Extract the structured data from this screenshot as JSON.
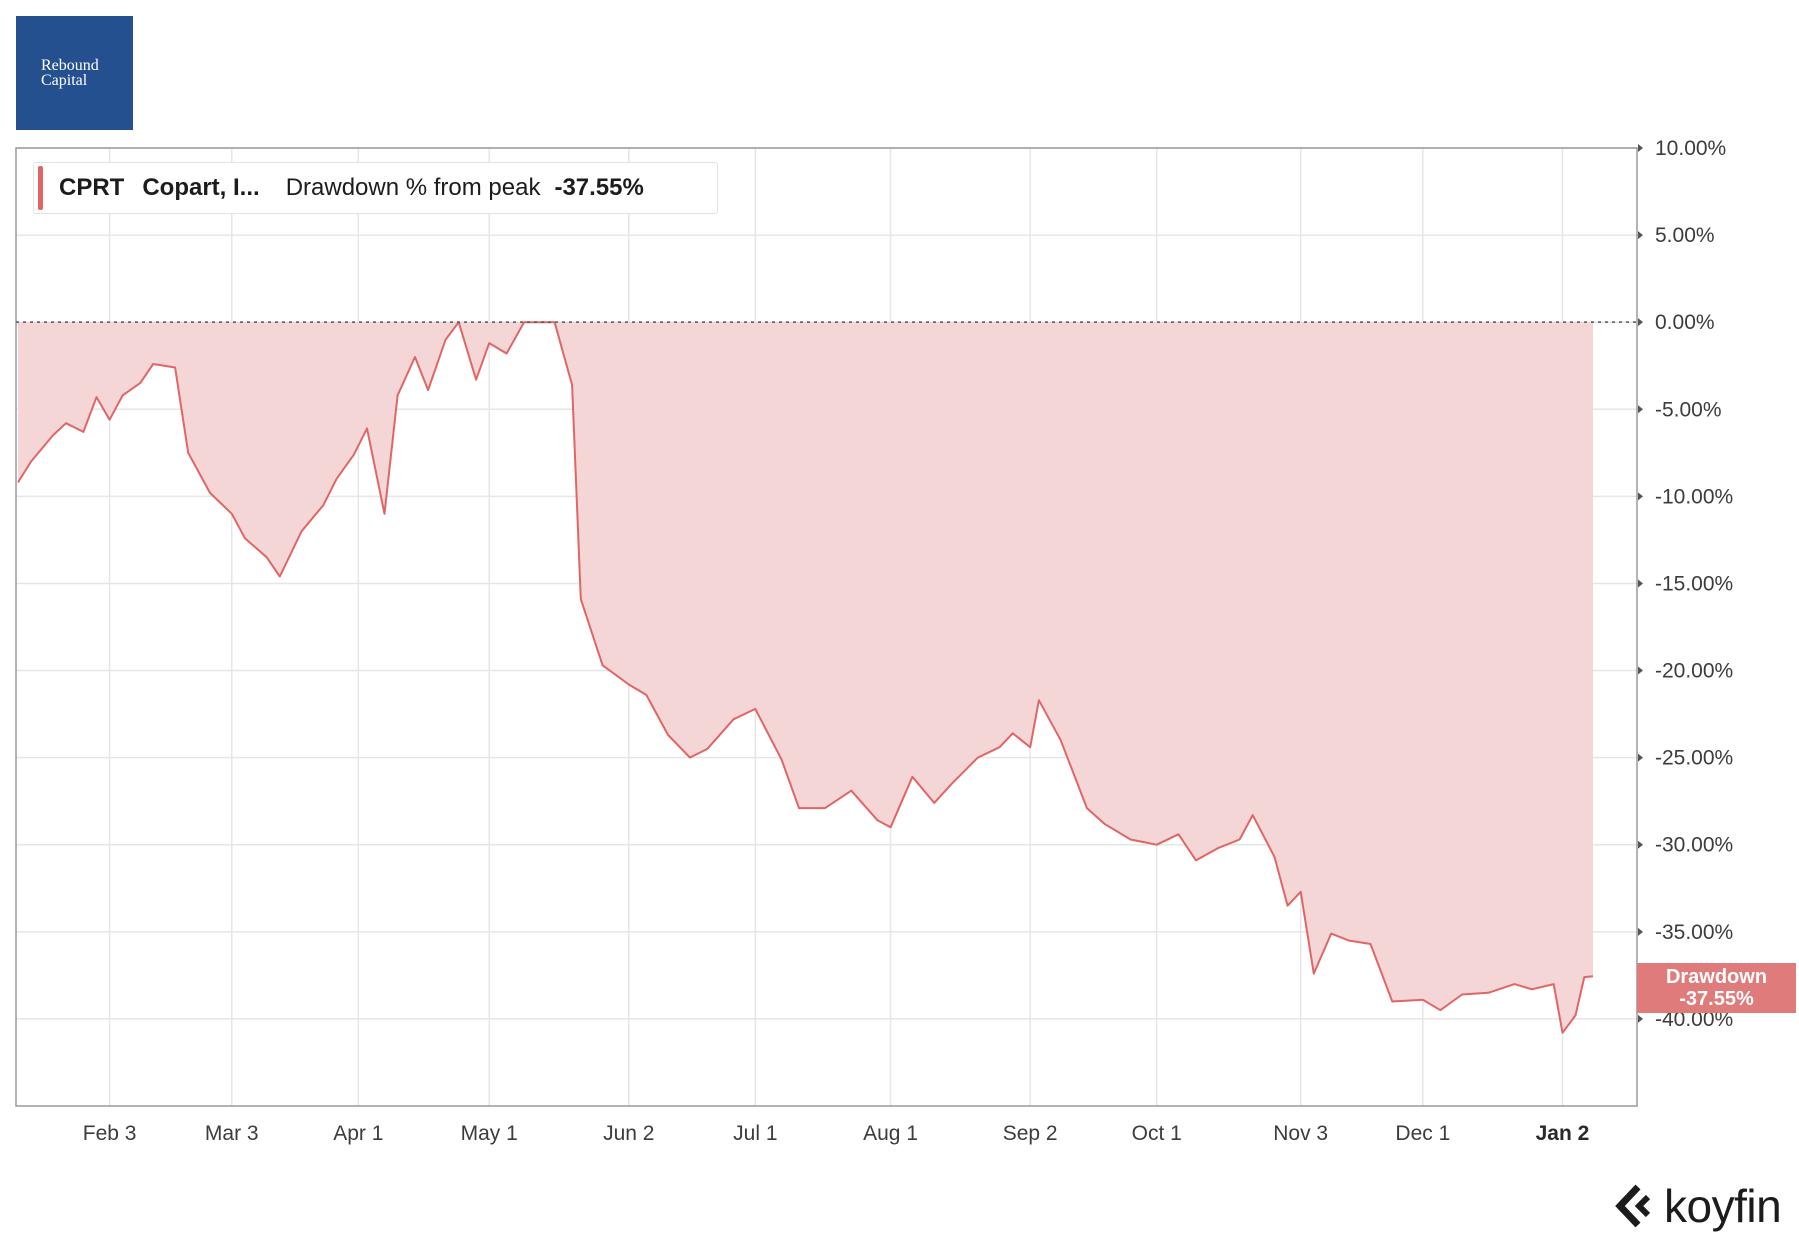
{
  "logo": {
    "text": "Rebound\nCapital"
  },
  "legend": {
    "ticker": "CPRT",
    "name": "Copart, I...",
    "metric": "Drawdown % from peak",
    "value": "-37.55%"
  },
  "value_tag": {
    "line1": "Drawdown",
    "line2": "-37.55%"
  },
  "brand": {
    "name": "koyfin",
    "icon": "koyfin-chevron-logo"
  },
  "colors": {
    "series": "#e06666",
    "fill": "#f5d6d6",
    "tag": "#e07b7b",
    "logo_bg": "#24508f"
  },
  "chart_data": {
    "type": "area",
    "title": "",
    "xlabel": "",
    "ylabel": "",
    "ylim": [
      -45,
      10
    ],
    "grid": true,
    "y_ticks": [
      {
        "v": 10,
        "label": "10.00%"
      },
      {
        "v": 5,
        "label": "5.00%"
      },
      {
        "v": 0,
        "label": "0.00%"
      },
      {
        "v": -5,
        "label": "-5.00%"
      },
      {
        "v": -10,
        "label": "-10.00%"
      },
      {
        "v": -15,
        "label": "-15.00%"
      },
      {
        "v": -20,
        "label": "-20.00%"
      },
      {
        "v": -25,
        "label": "-25.00%"
      },
      {
        "v": -30,
        "label": "-30.00%"
      },
      {
        "v": -35,
        "label": "-35.00%"
      },
      {
        "v": -40,
        "label": "-40.00%"
      }
    ],
    "x_range": [
      "2025-01-13",
      "2026-01-09"
    ],
    "x_ticks": [
      {
        "date": "2025-02-03",
        "label": "Feb 3"
      },
      {
        "date": "2025-03-03",
        "label": "Mar 3"
      },
      {
        "date": "2025-04-01",
        "label": "Apr 1"
      },
      {
        "date": "2025-05-01",
        "label": "May 1"
      },
      {
        "date": "2025-06-02",
        "label": "Jun 2"
      },
      {
        "date": "2025-07-01",
        "label": "Jul 1"
      },
      {
        "date": "2025-08-01",
        "label": "Aug 1"
      },
      {
        "date": "2025-09-02",
        "label": "Sep 2"
      },
      {
        "date": "2025-10-01",
        "label": "Oct 1"
      },
      {
        "date": "2025-11-03",
        "label": "Nov 3"
      },
      {
        "date": "2025-12-01",
        "label": "Dec 1"
      },
      {
        "date": "2026-01-02",
        "label": "Jan 2",
        "bold": true
      }
    ],
    "reference_line": 0,
    "series": [
      {
        "name": "Drawdown % from peak",
        "points": [
          [
            "2025-01-13",
            -9.2
          ],
          [
            "2025-01-16",
            -8.0
          ],
          [
            "2025-01-21",
            -6.5
          ],
          [
            "2025-01-24",
            -5.8
          ],
          [
            "2025-01-28",
            -6.3
          ],
          [
            "2025-01-31",
            -4.3
          ],
          [
            "2025-02-03",
            -5.6
          ],
          [
            "2025-02-06",
            -4.2
          ],
          [
            "2025-02-10",
            -3.5
          ],
          [
            "2025-02-13",
            -2.4
          ],
          [
            "2025-02-18",
            -2.6
          ],
          [
            "2025-02-21",
            -7.5
          ],
          [
            "2025-02-26",
            -9.8
          ],
          [
            "2025-03-03",
            -11.0
          ],
          [
            "2025-03-06",
            -12.4
          ],
          [
            "2025-03-11",
            -13.5
          ],
          [
            "2025-03-14",
            -14.6
          ],
          [
            "2025-03-19",
            -12.0
          ],
          [
            "2025-03-24",
            -10.5
          ],
          [
            "2025-03-27",
            -9.0
          ],
          [
            "2025-03-31",
            -7.6
          ],
          [
            "2025-04-03",
            -6.1
          ],
          [
            "2025-04-07",
            -11.0
          ],
          [
            "2025-04-10",
            -4.2
          ],
          [
            "2025-04-14",
            -2.0
          ],
          [
            "2025-04-17",
            -3.9
          ],
          [
            "2025-04-21",
            -1.0
          ],
          [
            "2025-04-24",
            0.0
          ],
          [
            "2025-04-28",
            -3.3
          ],
          [
            "2025-05-01",
            -1.2
          ],
          [
            "2025-05-05",
            -1.8
          ],
          [
            "2025-05-09",
            0.0
          ],
          [
            "2025-05-16",
            0.0
          ],
          [
            "2025-05-20",
            -3.6
          ],
          [
            "2025-05-22",
            -15.9
          ],
          [
            "2025-05-27",
            -19.7
          ],
          [
            "2025-06-02",
            -20.8
          ],
          [
            "2025-06-06",
            -21.4
          ],
          [
            "2025-06-11",
            -23.7
          ],
          [
            "2025-06-16",
            -25.0
          ],
          [
            "2025-06-20",
            -24.5
          ],
          [
            "2025-06-26",
            -22.8
          ],
          [
            "2025-07-01",
            -22.2
          ],
          [
            "2025-07-07",
            -25.1
          ],
          [
            "2025-07-11",
            -27.9
          ],
          [
            "2025-07-17",
            -27.9
          ],
          [
            "2025-07-23",
            -26.9
          ],
          [
            "2025-07-29",
            -28.6
          ],
          [
            "2025-08-01",
            -29.0
          ],
          [
            "2025-08-06",
            -26.1
          ],
          [
            "2025-08-11",
            -27.6
          ],
          [
            "2025-08-15",
            -26.5
          ],
          [
            "2025-08-21",
            -25.0
          ],
          [
            "2025-08-26",
            -24.4
          ],
          [
            "2025-08-29",
            -23.6
          ],
          [
            "2025-09-02",
            -24.4
          ],
          [
            "2025-09-04",
            -21.7
          ],
          [
            "2025-09-09",
            -24.0
          ],
          [
            "2025-09-15",
            -27.9
          ],
          [
            "2025-09-19",
            -28.8
          ],
          [
            "2025-09-25",
            -29.7
          ],
          [
            "2025-10-01",
            -30.0
          ],
          [
            "2025-10-06",
            -29.4
          ],
          [
            "2025-10-10",
            -30.9
          ],
          [
            "2025-10-15",
            -30.2
          ],
          [
            "2025-10-20",
            -29.7
          ],
          [
            "2025-10-23",
            -28.3
          ],
          [
            "2025-10-28",
            -30.7
          ],
          [
            "2025-10-31",
            -33.5
          ],
          [
            "2025-11-03",
            -32.7
          ],
          [
            "2025-11-06",
            -37.4
          ],
          [
            "2025-11-10",
            -35.1
          ],
          [
            "2025-11-14",
            -35.5
          ],
          [
            "2025-11-19",
            -35.7
          ],
          [
            "2025-11-24",
            -39.0
          ],
          [
            "2025-12-01",
            -38.9
          ],
          [
            "2025-12-05",
            -39.5
          ],
          [
            "2025-12-10",
            -38.6
          ],
          [
            "2025-12-16",
            -38.5
          ],
          [
            "2025-12-22",
            -38.0
          ],
          [
            "2025-12-26",
            -38.3
          ],
          [
            "2025-12-31",
            -38.0
          ],
          [
            "2026-01-02",
            -40.8
          ],
          [
            "2026-01-05",
            -39.8
          ],
          [
            "2026-01-07",
            -37.6
          ],
          [
            "2026-01-09",
            -37.55
          ]
        ]
      }
    ]
  }
}
